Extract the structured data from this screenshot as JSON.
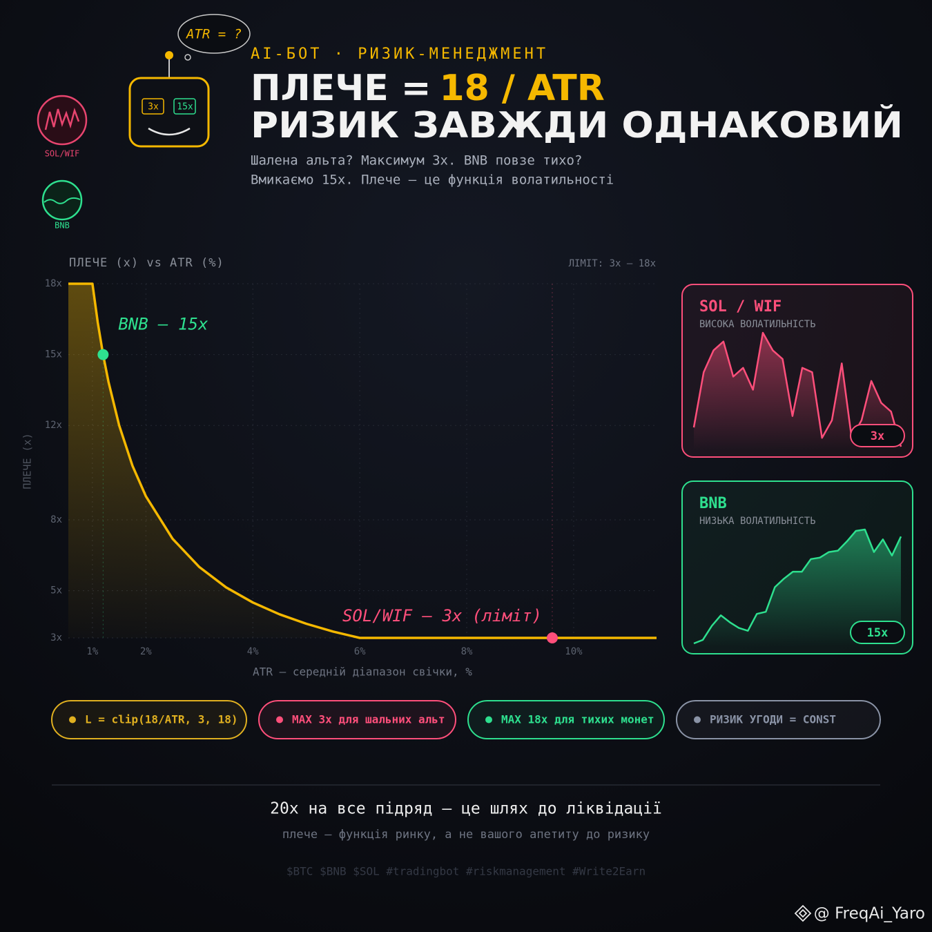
{
  "header": {
    "kicker": "AI-БОТ · РИЗИК-МЕНЕДЖМЕНТ",
    "title_start": "ПЛЕЧЕ =",
    "title_accent": "18 / ATR",
    "title_line2": "РИЗИК ЗАВЖДИ ОДНАКОВИЙ",
    "subtitle_line1": "Шалена альта? Максимум 3x. BNB повзе тихо?",
    "subtitle_line2": "Вмикаємо 15x. Плече — це функція волатильності"
  },
  "robot": {
    "thought": "ATR = ?",
    "left_display": "3x",
    "right_display": "15x"
  },
  "icons": [
    {
      "label": "SOL/WIF",
      "color": "#e8456f"
    },
    {
      "label": "BNB",
      "color": "#2ee08f"
    }
  ],
  "chart_data": [
    {
      "type": "line",
      "title": "ПЛЕЧЕ (x) vs ATR (%)",
      "note": "ЛІМІТ: 3x — 18x",
      "x_label": "ATR — середній діапазон свічки, %",
      "y_label": "ПЛЕЧЕ (x)",
      "color": "#f5b800",
      "grid": true,
      "x": [
        0.55,
        1,
        1.1,
        1.2,
        1.3,
        1.5,
        1.75,
        2,
        2.5,
        3,
        3.5,
        4,
        4.5,
        5,
        5.5,
        6,
        8,
        10,
        11.55
      ],
      "values": [
        18,
        18,
        16.36,
        15,
        13.85,
        12,
        10.29,
        9,
        7.2,
        6,
        5.14,
        4.5,
        4,
        3.6,
        3.27,
        3,
        3,
        3,
        3
      ],
      "xlim": [
        0.55,
        11.55
      ],
      "ylim": [
        3,
        18
      ],
      "xticks": [
        {
          "value": 1,
          "label": "1%"
        },
        {
          "value": 2,
          "label": "2%"
        },
        {
          "value": 4,
          "label": "4%"
        },
        {
          "value": 6,
          "label": "6%"
        },
        {
          "value": 8,
          "label": "8%"
        },
        {
          "value": 10,
          "label": "10%"
        }
      ],
      "yticks": [
        {
          "value": 3,
          "label": "3x"
        },
        {
          "value": 5,
          "label": "5x"
        },
        {
          "value": 8,
          "label": "8x"
        },
        {
          "value": 12,
          "label": "12x"
        },
        {
          "value": 15,
          "label": "15x"
        },
        {
          "value": 18,
          "label": "18x"
        }
      ],
      "points": [
        {
          "x": 1.2,
          "y": 15,
          "label": "BNB — 15x",
          "color": "#2ee08f"
        },
        {
          "x": 9.6,
          "y": 3,
          "label": "SOL/WIF — 3x (ліміт)",
          "color": "#ff4f7b"
        }
      ]
    },
    {
      "type": "area",
      "title": "SOL / WIF",
      "subtitle": "ВИСОКА ВОЛАТИЛЬНІСТЬ",
      "badge": "3x",
      "color": "#ff4f7b",
      "values": [
        107,
        170,
        195,
        205,
        165,
        175,
        150,
        215,
        195,
        185,
        120,
        175,
        170,
        95,
        115,
        180,
        95,
        115,
        160,
        135,
        125,
        85
      ]
    },
    {
      "type": "area",
      "title": "BNB",
      "subtitle": "НИЗЬКА ВОЛАТИЛЬНІСТЬ",
      "badge": "15x",
      "color": "#2ee08f",
      "values": [
        70,
        75,
        95,
        110,
        100,
        92,
        88,
        112,
        115,
        150,
        162,
        172,
        172,
        190,
        192,
        200,
        202,
        215,
        230,
        232,
        200,
        218,
        195,
        222
      ]
    }
  ],
  "pills": [
    {
      "text": "L = clip(18/ATR, 3, 18)",
      "color": "#e0b020"
    },
    {
      "text": "MAX 3x для шальних альт",
      "color": "#ff4f7b"
    },
    {
      "text": "MAX 18x для тихих монет",
      "color": "#2ee08f"
    },
    {
      "text": "РИЗИК УГОДИ = CONST",
      "color": "#8a93a6"
    }
  ],
  "footer": {
    "headline": "20x на все підряд — це шлях до ліквідації",
    "subline": "плече — функція ринку, а не вашого апетиту до ризику",
    "tags": "$BTC $BNB $SOL #tradingbot #riskmanagement #Write2Earn",
    "watermark": "@ FreqAi_Yaro"
  }
}
